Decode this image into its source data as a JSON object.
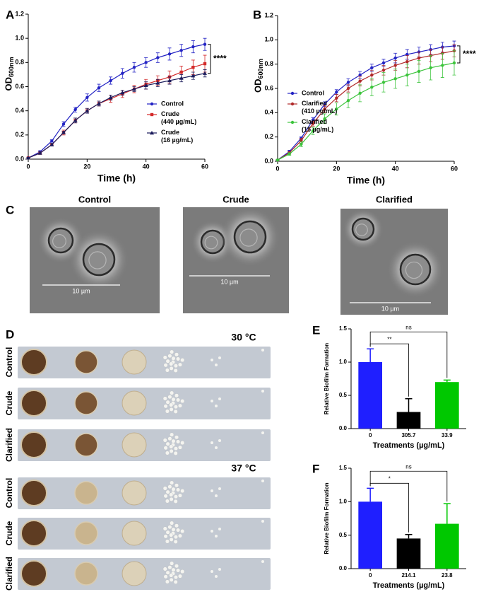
{
  "chart_data": [
    {
      "type": "line",
      "panel": "A",
      "xlabel": "Time (h)",
      "ylabel": "OD",
      "ylabel_subscript": "600nm",
      "x": [
        0,
        4,
        8,
        12,
        16,
        20,
        24,
        28,
        32,
        36,
        40,
        44,
        48,
        52,
        56,
        60
      ],
      "xlim": [
        0,
        60
      ],
      "xticks": [
        0,
        20,
        40,
        60
      ],
      "ylim": [
        0,
        1.2
      ],
      "yticks": [
        {
          "value": 0,
          "label": "0.0"
        },
        0.2,
        0.4,
        0.6,
        0.8,
        {
          "value": 1,
          "label": "1.0"
        },
        1.2
      ],
      "legend": "lower right",
      "annotation": "****",
      "series": [
        {
          "name": "Control",
          "color": "#2323c4",
          "marker": "circle",
          "values": [
            0.01,
            0.06,
            0.15,
            0.29,
            0.41,
            0.51,
            0.59,
            0.65,
            0.71,
            0.76,
            0.8,
            0.84,
            0.87,
            0.9,
            0.93,
            0.95
          ],
          "errors": [
            0.005,
            0.01,
            0.01,
            0.02,
            0.02,
            0.03,
            0.03,
            0.03,
            0.04,
            0.04,
            0.04,
            0.04,
            0.05,
            0.05,
            0.05,
            0.05
          ]
        },
        {
          "name": "Crude (440 µg/mL)",
          "color": "#d42a2a",
          "marker": "square",
          "values": [
            0.01,
            0.05,
            0.12,
            0.22,
            0.32,
            0.4,
            0.46,
            0.5,
            0.54,
            0.58,
            0.62,
            0.65,
            0.68,
            0.72,
            0.76,
            0.79
          ],
          "errors": [
            0.005,
            0.01,
            0.01,
            0.02,
            0.02,
            0.02,
            0.02,
            0.03,
            0.03,
            0.03,
            0.04,
            0.04,
            0.05,
            0.05,
            0.06,
            0.07
          ]
        },
        {
          "name": "Crude (16 µg/mL)",
          "color": "#1c1c5c",
          "marker": "triangle",
          "values": [
            0.01,
            0.05,
            0.12,
            0.22,
            0.32,
            0.4,
            0.46,
            0.51,
            0.55,
            0.58,
            0.61,
            0.63,
            0.65,
            0.67,
            0.69,
            0.71
          ],
          "errors": [
            0.005,
            0.01,
            0.01,
            0.01,
            0.02,
            0.02,
            0.02,
            0.02,
            0.02,
            0.02,
            0.03,
            0.03,
            0.03,
            0.03,
            0.03,
            0.03
          ]
        }
      ]
    },
    {
      "type": "line",
      "panel": "B",
      "xlabel": "Time (h)",
      "ylabel": "OD",
      "ylabel_subscript": "600nm",
      "x": [
        0,
        4,
        8,
        12,
        16,
        20,
        24,
        28,
        32,
        36,
        40,
        44,
        48,
        52,
        56,
        60
      ],
      "xlim": [
        0,
        60
      ],
      "xticks": [
        0,
        20,
        40,
        60
      ],
      "ylim": [
        0,
        1.2
      ],
      "yticks": [
        {
          "value": 0,
          "label": "0.0"
        },
        0.2,
        0.4,
        0.6,
        0.8,
        {
          "value": 1,
          "label": "1.0"
        },
        1.2
      ],
      "legend": "lower left",
      "annotation": "****",
      "series": [
        {
          "name": "Control",
          "color": "#2323c4",
          "marker": "circle",
          "values": [
            0.01,
            0.08,
            0.19,
            0.34,
            0.47,
            0.57,
            0.65,
            0.71,
            0.77,
            0.81,
            0.85,
            0.88,
            0.9,
            0.92,
            0.94,
            0.95
          ],
          "errors": [
            0.005,
            0.01,
            0.01,
            0.02,
            0.02,
            0.02,
            0.03,
            0.03,
            0.03,
            0.03,
            0.04,
            0.04,
            0.04,
            0.04,
            0.04,
            0.04
          ]
        },
        {
          "name": "Clarified (410 µg/mL)",
          "color": "#b02a2a",
          "marker": "circle",
          "values": [
            0.01,
            0.07,
            0.17,
            0.31,
            0.43,
            0.52,
            0.6,
            0.66,
            0.71,
            0.75,
            0.79,
            0.82,
            0.85,
            0.87,
            0.89,
            0.91
          ],
          "errors": [
            0.005,
            0.01,
            0.02,
            0.02,
            0.03,
            0.03,
            0.03,
            0.04,
            0.04,
            0.04,
            0.04,
            0.05,
            0.05,
            0.05,
            0.05,
            0.05
          ]
        },
        {
          "name": "Clarified (15 µg/mL)",
          "color": "#3cc43c",
          "marker": "circle",
          "values": [
            0.01,
            0.06,
            0.14,
            0.25,
            0.35,
            0.43,
            0.5,
            0.56,
            0.61,
            0.65,
            0.68,
            0.71,
            0.74,
            0.77,
            0.79,
            0.81
          ],
          "errors": [
            0.005,
            0.01,
            0.02,
            0.03,
            0.04,
            0.05,
            0.06,
            0.07,
            0.07,
            0.08,
            0.08,
            0.09,
            0.09,
            0.1,
            0.1,
            0.1
          ]
        }
      ]
    },
    {
      "type": "bar",
      "panel": "E",
      "xlabel": "Treatments (µg/mL)",
      "ylabel": "Relative Biofilm Formation",
      "categories": [
        "0",
        "305.7",
        "33.9"
      ],
      "values": [
        1.0,
        0.25,
        0.7
      ],
      "errors": [
        0.2,
        0.2,
        0.03
      ],
      "colors": [
        "#1f1fff",
        "#000000",
        "#00c800"
      ],
      "ylim": [
        0,
        1.5
      ],
      "yticks": [
        {
          "value": 0,
          "label": "0.0"
        },
        0.5,
        {
          "value": 1,
          "label": "1.0"
        },
        1.5
      ],
      "comparisons": [
        {
          "from": "0",
          "to": "305.7",
          "label": "**"
        },
        {
          "from": "0",
          "to": "33.9",
          "label": "ns"
        }
      ]
    },
    {
      "type": "bar",
      "panel": "F",
      "xlabel": "Treatments (µg/mL)",
      "ylabel": "Relative Biofilm Formation",
      "categories": [
        "0",
        "214.1",
        "23.8"
      ],
      "values": [
        1.0,
        0.45,
        0.67
      ],
      "errors": [
        0.2,
        0.06,
        0.3
      ],
      "colors": [
        "#1f1fff",
        "#000000",
        "#00c800"
      ],
      "ylim": [
        0,
        1.5
      ],
      "yticks": [
        {
          "value": 0,
          "label": "0.0"
        },
        0.5,
        {
          "value": 1,
          "label": "1.0"
        },
        1.5
      ],
      "comparisons": [
        {
          "from": "0",
          "to": "214.1",
          "label": "*"
        },
        {
          "from": "0",
          "to": "23.8",
          "label": "ns"
        }
      ]
    }
  ],
  "microscopy": {
    "panel": "C",
    "images": [
      {
        "title": "Control",
        "scale_bar": "10 µm"
      },
      {
        "title": "Crude",
        "scale_bar": "10 µm"
      },
      {
        "title": "Clarified",
        "scale_bar": "10 µm"
      }
    ]
  },
  "spot_assay": {
    "panel": "D",
    "groups": [
      {
        "temperature": "30 °C",
        "rows": [
          "Control",
          "Crude",
          "Clarified"
        ]
      },
      {
        "temperature": "37 °C",
        "rows": [
          "Control",
          "Crude",
          "Clarified"
        ]
      }
    ]
  }
}
